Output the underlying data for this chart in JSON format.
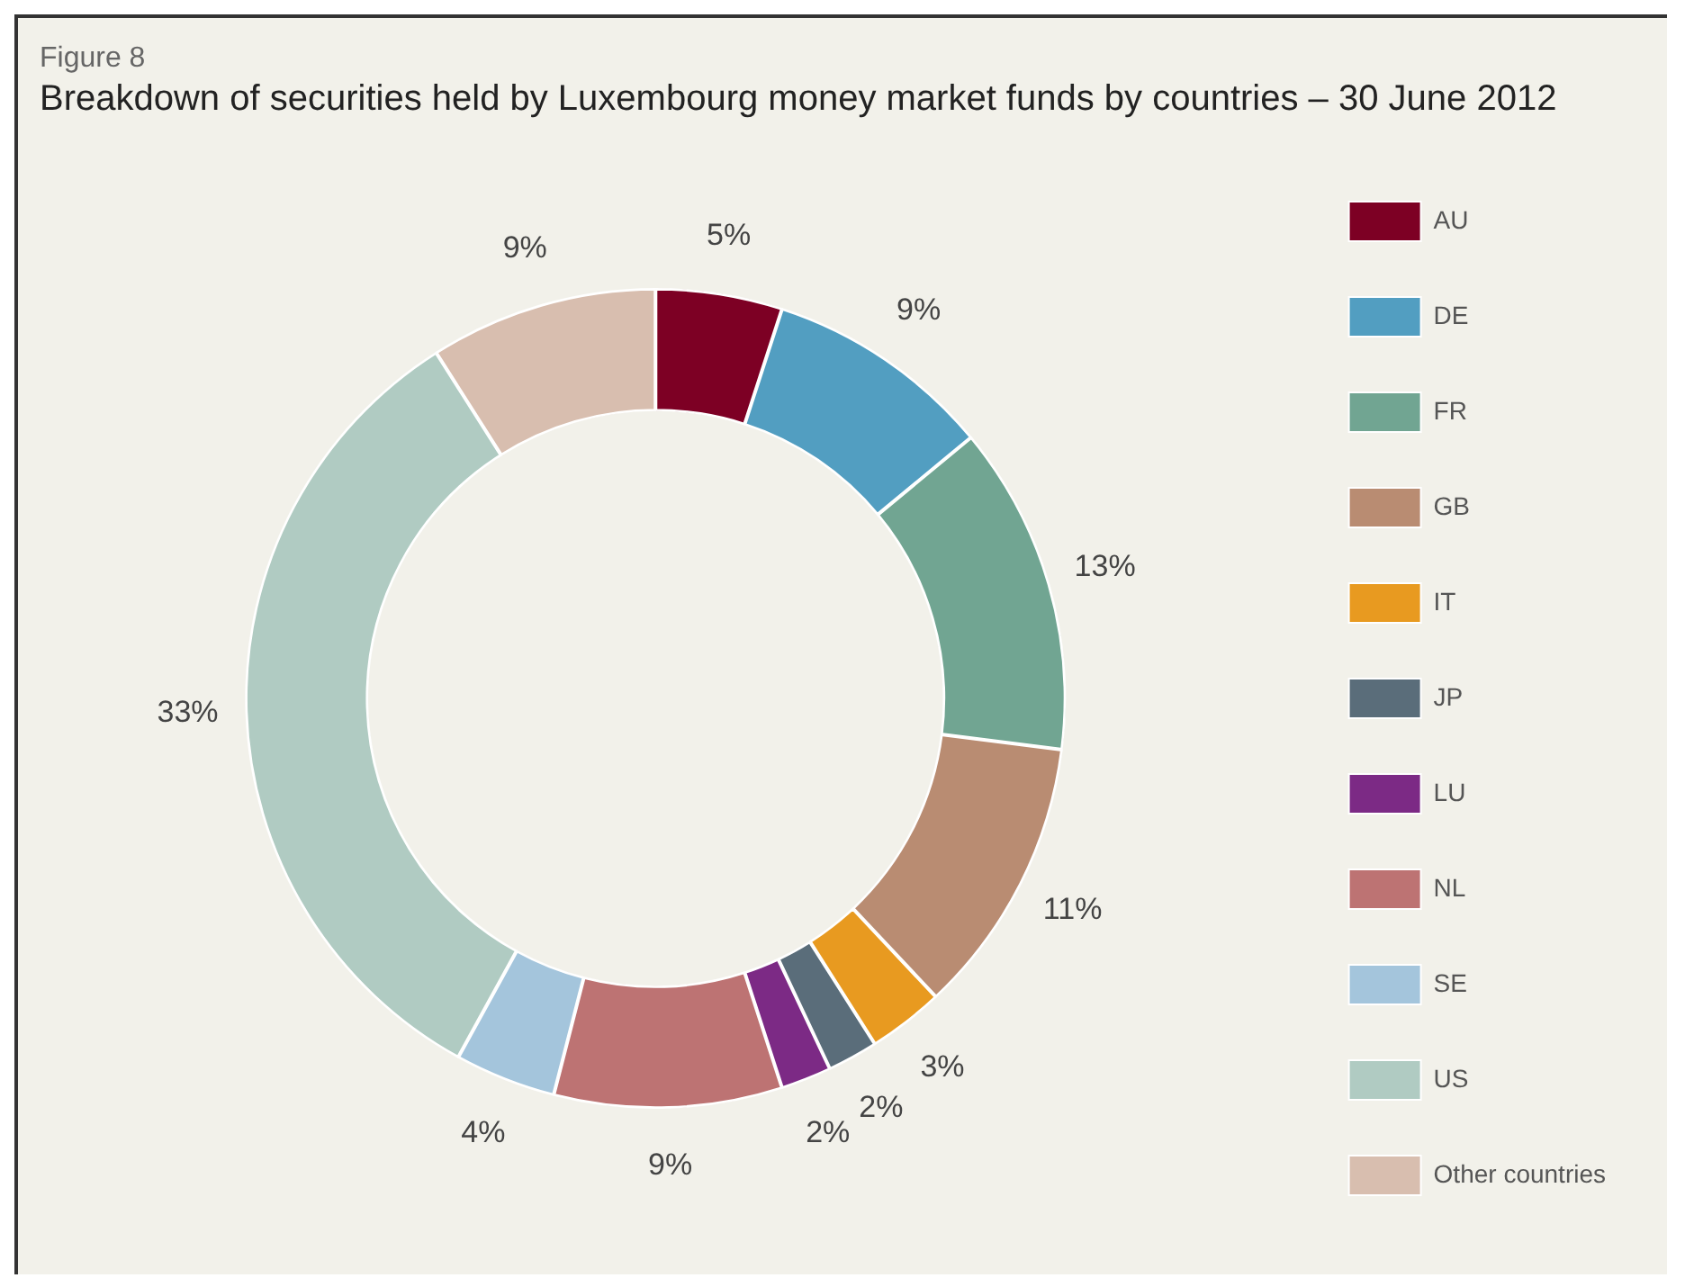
{
  "chart_data": {
    "type": "donut",
    "title": "Breakdown of securities held by Luxembourg money market funds by countries – 30 June 2012",
    "annotations": [
      "Figure 8"
    ],
    "categories": [
      "AU",
      "DE",
      "FR",
      "GB",
      "IT",
      "JP",
      "LU",
      "NL",
      "SE",
      "US",
      "Other countries"
    ],
    "values": [
      5,
      9,
      13,
      11,
      3,
      2,
      2,
      9,
      4,
      33,
      9
    ],
    "value_labels": [
      "5%",
      "9%",
      "13%",
      "11%",
      "3%",
      "2%",
      "2%",
      "9%",
      "4%",
      "33%",
      "9%"
    ],
    "colors": [
      "#7d0024",
      "#529ec1",
      "#71a592",
      "#b98c72",
      "#e89a20",
      "#5a6d7a",
      "#7c2a85",
      "#bd7373",
      "#a4c5dc",
      "#b0cbc2",
      "#d8beaf"
    ],
    "legend": "right"
  }
}
